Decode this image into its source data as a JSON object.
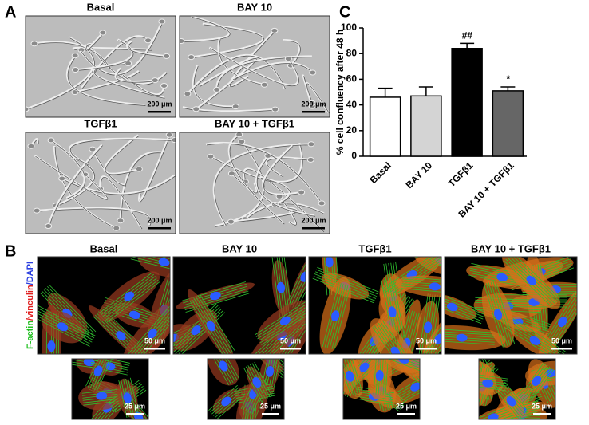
{
  "panel_labels": [
    "A",
    "B",
    "C"
  ],
  "panel_a": {
    "images": [
      {
        "title": "Basal",
        "scale_bar": "200 μm"
      },
      {
        "title": "BAY 10",
        "scale_bar": "200 μm"
      },
      {
        "title": "TGFβ1",
        "scale_bar": "200 μm"
      },
      {
        "title": "BAY 10 + TGFβ1",
        "scale_bar": "200 μm"
      }
    ]
  },
  "panel_b": {
    "stain_label": [
      "F-actin",
      "/vinculin",
      "/DAPI"
    ],
    "images": [
      {
        "title": "Basal",
        "scale_bar": "50 μm",
        "inset_scale_bar": "25 μm"
      },
      {
        "title": "BAY 10",
        "scale_bar": "50 μm",
        "inset_scale_bar": "25 μm"
      },
      {
        "title": "TGFβ1",
        "scale_bar": "50 μm",
        "inset_scale_bar": "25 μm"
      },
      {
        "title": "BAY 10 + TGFβ1",
        "scale_bar": "50 μm",
        "inset_scale_bar": "25 μm"
      }
    ]
  },
  "chart_data": {
    "type": "bar",
    "y_label": "% cell confluency after 48 h",
    "categories": [
      "Basal",
      "BAY 10",
      "TGFβ1",
      "BAY 10 + TGFβ1"
    ],
    "values": [
      46,
      47,
      84,
      51
    ],
    "errors": [
      7,
      7,
      4,
      3
    ],
    "colors": [
      "#ffffff",
      "#d4d4d4",
      "#000000",
      "#666666"
    ],
    "annotations": [
      null,
      null,
      "##",
      "*"
    ],
    "ylim": [
      0,
      100
    ],
    "yticks": [
      0,
      20,
      40,
      60,
      80,
      100
    ]
  }
}
